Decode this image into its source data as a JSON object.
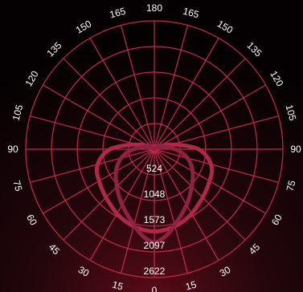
{
  "chart_data": {
    "type": "polar-line",
    "title": "",
    "angle_unit": "degrees",
    "angle_ticks": [
      0,
      15,
      30,
      45,
      60,
      75,
      90,
      105,
      120,
      135,
      150,
      165,
      180,
      165,
      150,
      135,
      120,
      105,
      90,
      75,
      60,
      45,
      30,
      15
    ],
    "radial_ticks": [
      524,
      1048,
      1573,
      2097,
      2622
    ],
    "radial_range": [
      0,
      2622
    ],
    "grid": true,
    "colors": {
      "grid": "#c8284b",
      "background_top": "#1a0508",
      "background_bottom": "#3a0a12",
      "series_1": "#b02848",
      "series_2": "#8e2240"
    },
    "series": [
      {
        "points": [
          [
            0,
            1680
          ],
          [
            10,
            1650
          ],
          [
            20,
            1600
          ],
          [
            30,
            1520
          ],
          [
            40,
            1430
          ],
          [
            50,
            1360
          ],
          [
            60,
            1300
          ],
          [
            70,
            1250
          ],
          [
            80,
            1120
          ],
          [
            90,
            900
          ],
          [
            100,
            520
          ],
          [
            110,
            260
          ],
          [
            120,
            120
          ],
          [
            135,
            50
          ],
          [
            150,
            20
          ],
          [
            180,
            0
          ],
          [
            210,
            20
          ],
          [
            225,
            50
          ],
          [
            240,
            120
          ],
          [
            250,
            260
          ],
          [
            260,
            520
          ],
          [
            270,
            900
          ],
          [
            280,
            1120
          ],
          [
            290,
            1250
          ],
          [
            300,
            1300
          ],
          [
            310,
            1360
          ],
          [
            320,
            1430
          ],
          [
            330,
            1520
          ],
          [
            340,
            1600
          ],
          [
            350,
            1650
          ]
        ]
      },
      {
        "points": [
          [
            0,
            1900
          ],
          [
            8,
            1780
          ],
          [
            15,
            1600
          ],
          [
            25,
            1400
          ],
          [
            35,
            1230
          ],
          [
            45,
            1080
          ],
          [
            55,
            960
          ],
          [
            65,
            840
          ],
          [
            75,
            700
          ],
          [
            85,
            520
          ],
          [
            95,
            330
          ],
          [
            110,
            170
          ],
          [
            125,
            60
          ],
          [
            180,
            0
          ],
          [
            235,
            60
          ],
          [
            250,
            170
          ],
          [
            265,
            330
          ],
          [
            275,
            520
          ],
          [
            285,
            700
          ],
          [
            295,
            840
          ],
          [
            305,
            960
          ],
          [
            315,
            1080
          ],
          [
            325,
            1230
          ],
          [
            335,
            1400
          ],
          [
            345,
            1600
          ],
          [
            352,
            1780
          ]
        ]
      }
    ]
  }
}
